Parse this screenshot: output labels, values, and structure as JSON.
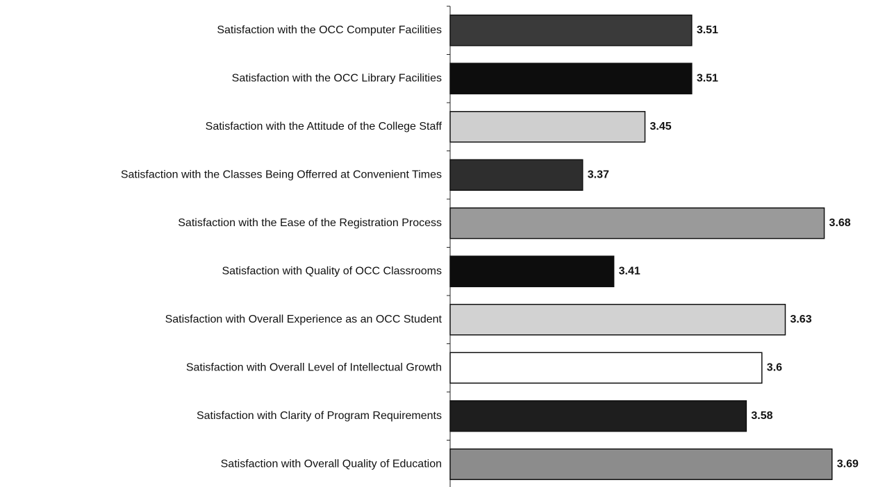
{
  "chart_data": {
    "type": "bar",
    "orientation": "horizontal",
    "categories": [
      "Satisfaction with the OCC Computer Facilities",
      "Satisfaction with the OCC Library Facilities",
      "Satisfaction with the Attitude of the College Staff",
      "Satisfaction with the Classes Being Offerred at Convenient Times",
      "Satisfaction with the Ease of the Registration Process",
      "Satisfaction with Quality of OCC Classrooms",
      "Satisfaction with Overall Experience as an OCC Student",
      "Satisfaction with Overall Level of Intellectual Growth",
      "Satisfaction with Clarity of Program Requirements",
      "Satisfaction with Overall Quality of Education"
    ],
    "values": [
      3.51,
      3.51,
      3.45,
      3.37,
      3.68,
      3.41,
      3.63,
      3.6,
      3.58,
      3.69
    ],
    "colors": [
      "#3a3a3a",
      "#0d0d0d",
      "#cfcfcf",
      "#2e2e2e",
      "#9a9a9a",
      "#0d0d0d",
      "#d2d2d2",
      "#ffffff",
      "#1e1e1e",
      "#8c8c8c"
    ],
    "xlim": [
      3.2,
      3.7
    ]
  }
}
